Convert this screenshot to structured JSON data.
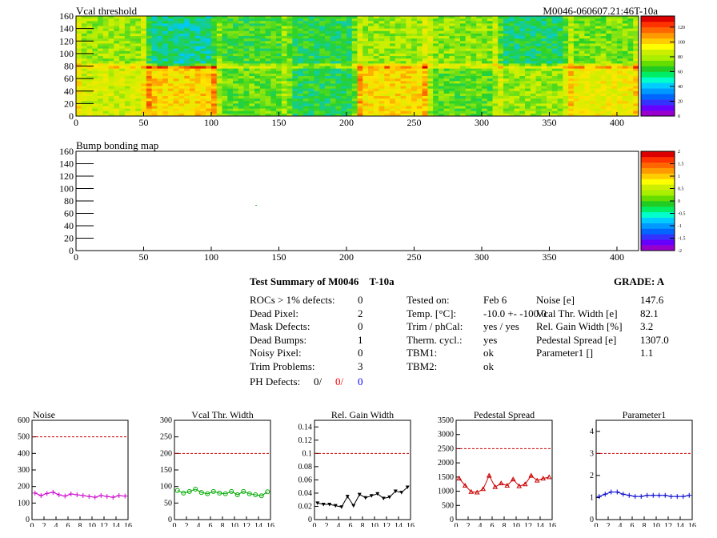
{
  "maps": [
    {
      "title": "Vcal threshold",
      "id_label": "M0046-060607.21:46T-10a",
      "x_ticks": [
        0,
        50,
        100,
        150,
        200,
        250,
        300,
        350,
        400
      ],
      "y_ticks": [
        0,
        20,
        40,
        60,
        80,
        100,
        120,
        140,
        160
      ],
      "x_range": [
        0,
        416
      ],
      "y_range": [
        0,
        160
      ],
      "palette_ticks": [
        "0",
        "20",
        "40",
        "60",
        "80",
        "100",
        "120"
      ],
      "palette_range": [
        0,
        135
      ]
    },
    {
      "title": "Bump bonding map",
      "x_ticks": [
        0,
        50,
        100,
        150,
        200,
        250,
        300,
        350,
        400
      ],
      "y_ticks": [
        0,
        20,
        40,
        60,
        80,
        100,
        120,
        140,
        160
      ],
      "x_range": [
        0,
        416
      ],
      "y_range": [
        0,
        160
      ],
      "palette_ticks": [
        "-2",
        "-1.5",
        "-1",
        "-0.5",
        "0",
        "0.5",
        "1",
        "1.5",
        "2"
      ],
      "palette_range": [
        -2,
        2
      ]
    }
  ],
  "summary": {
    "title": "Test Summary of M0046",
    "temp_code": "T-10a",
    "grade": "GRADE:  A",
    "defects": [
      {
        "label": "ROCs > 1% defects:",
        "value": "0"
      },
      {
        "label": "Dead Pixel:",
        "value": "2"
      },
      {
        "label": "Mask Defects:",
        "value": "0"
      },
      {
        "label": "Dead Bumps:",
        "value": "1"
      },
      {
        "label": "Noisy Pixel:",
        "value": "0"
      },
      {
        "label": "Trim Problems:",
        "value": "3"
      }
    ],
    "ph_defects": {
      "label": "PH Defects:",
      "v1": "0/",
      "v2": "0/",
      "v3": "0"
    },
    "conditions": [
      {
        "label": "Tested on:",
        "value": "Feb 6"
      },
      {
        "label": "Temp. [°C]:",
        "value": "-10.0 +- -100.0"
      },
      {
        "label": "Trim / phCal:",
        "value": "yes / yes"
      },
      {
        "label": "Therm. cycl.:",
        "value": "yes"
      },
      {
        "label": "TBM1:",
        "value": "ok"
      },
      {
        "label": "TBM2:",
        "value": "ok"
      }
    ],
    "params": [
      {
        "label": "Noise [e]",
        "value": "147.6"
      },
      {
        "label": "Vcal Thr. Width [e]",
        "value": "82.1"
      },
      {
        "label": "Rel. Gain Width [%]",
        "value": "3.2"
      },
      {
        "label": "Pedestal Spread [e]",
        "value": "1307.0"
      },
      {
        "label": "Parameter1 []",
        "value": "1.1"
      }
    ]
  },
  "chart_data": [
    {
      "type": "line",
      "title": "Noise",
      "x": [
        0,
        1,
        2,
        3,
        4,
        5,
        6,
        7,
        8,
        9,
        10,
        11,
        12,
        13,
        14,
        15
      ],
      "values": [
        160,
        145,
        158,
        165,
        150,
        142,
        155,
        150,
        145,
        140,
        135,
        145,
        140,
        135,
        145,
        142
      ],
      "ylim": [
        0,
        600
      ],
      "xlim": [
        0,
        16
      ],
      "y_ticks": [
        "0",
        "100",
        "200",
        "300",
        "400",
        "500",
        "600"
      ],
      "x_ticks": [
        "0",
        "2",
        "4",
        "6",
        "8",
        "10",
        "12",
        "14",
        "16"
      ],
      "cut": 500,
      "color": "#cc00cc",
      "marker": "cross"
    },
    {
      "type": "line",
      "title": "Vcal Thr. Width",
      "x": [
        0,
        1,
        2,
        3,
        4,
        5,
        6,
        7,
        8,
        9,
        10,
        11,
        12,
        13,
        14,
        15
      ],
      "values": [
        88,
        80,
        85,
        92,
        82,
        78,
        85,
        80,
        78,
        85,
        75,
        85,
        78,
        75,
        72,
        84
      ],
      "ylim": [
        0,
        300
      ],
      "xlim": [
        0,
        16
      ],
      "y_ticks": [
        "0",
        "50",
        "100",
        "150",
        "200",
        "250",
        "300"
      ],
      "x_ticks": [
        "0",
        "2",
        "4",
        "6",
        "8",
        "10",
        "12",
        "14",
        "16"
      ],
      "cut": 200,
      "color": "#00aa00",
      "marker": "circle"
    },
    {
      "type": "line",
      "title": "Rel. Gain Width",
      "x": [
        0,
        1,
        2,
        3,
        4,
        5,
        6,
        7,
        8,
        9,
        10,
        11,
        12,
        13,
        14,
        15
      ],
      "values": [
        0.025,
        0.023,
        0.023,
        0.021,
        0.019,
        0.035,
        0.021,
        0.038,
        0.033,
        0.036,
        0.039,
        0.032,
        0.034,
        0.043,
        0.041,
        0.049
      ],
      "ylim": [
        0,
        0.15
      ],
      "xlim": [
        0,
        16
      ],
      "y_ticks": [
        "0",
        "0.02",
        "0.04",
        "0.06",
        "0.08",
        "0.1",
        "0.12",
        "0.14"
      ],
      "x_ticks": [
        "0",
        "2",
        "4",
        "6",
        "8",
        "10",
        "12",
        "14",
        "16"
      ],
      "cut": 0.1,
      "color": "#000000",
      "marker": "triangle-down"
    },
    {
      "type": "line",
      "title": "Pedestal Spread",
      "x": [
        0,
        1,
        2,
        3,
        4,
        5,
        6,
        7,
        8,
        9,
        10,
        11,
        12,
        13,
        14,
        15
      ],
      "values": [
        1450,
        1200,
        980,
        960,
        1080,
        1550,
        1150,
        1280,
        1200,
        1420,
        1180,
        1250,
        1550,
        1380,
        1450,
        1500
      ],
      "ylim": [
        0,
        3500
      ],
      "xlim": [
        0,
        16
      ],
      "y_ticks": [
        "0",
        "500",
        "1000",
        "1500",
        "2000",
        "2500",
        "3000",
        "3500"
      ],
      "x_ticks": [
        "0",
        "2",
        "4",
        "6",
        "8",
        "10",
        "12",
        "14",
        "16"
      ],
      "cut": 2500,
      "color": "#cc0000",
      "marker": "triangle-up"
    },
    {
      "type": "line",
      "title": "Parameter1",
      "x": [
        0,
        1,
        2,
        3,
        4,
        5,
        6,
        7,
        8,
        9,
        10,
        11,
        12,
        13,
        14,
        15
      ],
      "values": [
        1.05,
        1.15,
        1.25,
        1.25,
        1.15,
        1.1,
        1.05,
        1.05,
        1.1,
        1.1,
        1.1,
        1.1,
        1.05,
        1.05,
        1.05,
        1.1
      ],
      "ylim": [
        0,
        4.5
      ],
      "xlim": [
        0,
        16
      ],
      "y_ticks": [
        "0",
        "1",
        "2",
        "3",
        "4"
      ],
      "x_ticks": [
        "0",
        "2",
        "4",
        "6",
        "8",
        "10",
        "12",
        "14",
        "16"
      ],
      "cut": 3,
      "color": "#0000cc",
      "marker": "cross"
    }
  ]
}
